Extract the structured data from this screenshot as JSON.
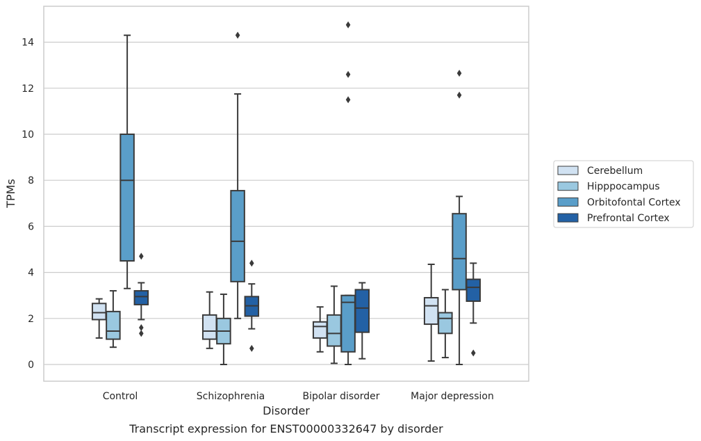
{
  "chart_data": {
    "type": "box",
    "xlabel": "Disorder",
    "ylabel": "TPMs",
    "caption": "Transcript expression for ENST00000332647 by disorder",
    "ylim": [
      -0.7,
      15.5
    ],
    "yticks": [
      0,
      2,
      4,
      6,
      8,
      10,
      12,
      14
    ],
    "grid": "horizontal",
    "legend_position": "right",
    "categories": [
      "Control",
      "Schizophrenia",
      "Bipolar disorder",
      "Major depression"
    ],
    "series": [
      {
        "name": "Cerebellum",
        "color": "#d1e2f2",
        "boxes": [
          {
            "whislo": 1.15,
            "q1": 1.95,
            "med": 2.25,
            "q3": 2.65,
            "whishi": 2.85,
            "fliers": []
          },
          {
            "whislo": 0.7,
            "q1": 1.1,
            "med": 1.45,
            "q3": 2.15,
            "whishi": 3.15,
            "fliers": []
          },
          {
            "whislo": 0.55,
            "q1": 1.15,
            "med": 1.65,
            "q3": 1.85,
            "whishi": 2.5,
            "fliers": []
          },
          {
            "whislo": 0.15,
            "q1": 1.75,
            "med": 2.55,
            "q3": 2.9,
            "whishi": 4.35,
            "fliers": []
          }
        ]
      },
      {
        "name": "Hipppocampus",
        "color": "#9ac8e0",
        "boxes": [
          {
            "whislo": 0.75,
            "q1": 1.1,
            "med": 1.45,
            "q3": 2.3,
            "whishi": 3.2,
            "fliers": []
          },
          {
            "whislo": 0.0,
            "q1": 0.9,
            "med": 1.45,
            "q3": 2.0,
            "whishi": 3.05,
            "fliers": []
          },
          {
            "whislo": 0.05,
            "q1": 0.8,
            "med": 1.35,
            "q3": 2.15,
            "whishi": 3.4,
            "fliers": []
          },
          {
            "whislo": 0.3,
            "q1": 1.35,
            "med": 2.0,
            "q3": 2.25,
            "whishi": 3.25,
            "fliers": []
          }
        ]
      },
      {
        "name": "Orbitofontal Cortex",
        "color": "#5a9ec9",
        "boxes": [
          {
            "whislo": 3.3,
            "q1": 4.5,
            "med": 8.0,
            "q3": 10.0,
            "whishi": 14.3,
            "fliers": []
          },
          {
            "whislo": 2.0,
            "q1": 3.6,
            "med": 5.35,
            "q3": 7.55,
            "whishi": 11.75,
            "fliers": [
              14.3
            ]
          },
          {
            "whislo": 0.0,
            "q1": 0.55,
            "med": 2.7,
            "q3": 3.0,
            "whishi": 3.0,
            "fliers": [
              11.5,
              12.6,
              14.75
            ]
          },
          {
            "whislo": 0.0,
            "q1": 3.25,
            "med": 4.6,
            "q3": 6.55,
            "whishi": 7.3,
            "fliers": [
              11.7,
              12.65
            ]
          }
        ]
      },
      {
        "name": "Prefrontal Cortex",
        "color": "#2361a5",
        "boxes": [
          {
            "whislo": 1.95,
            "q1": 2.6,
            "med": 2.95,
            "q3": 3.2,
            "whishi": 3.55,
            "fliers": [
              1.35,
              1.6,
              4.7
            ]
          },
          {
            "whislo": 1.55,
            "q1": 2.1,
            "med": 2.55,
            "q3": 2.95,
            "whishi": 3.5,
            "fliers": [
              0.7,
              4.4
            ]
          },
          {
            "whislo": 0.25,
            "q1": 1.4,
            "med": 2.45,
            "q3": 3.25,
            "whishi": 3.55,
            "fliers": []
          },
          {
            "whislo": 1.8,
            "q1": 2.75,
            "med": 3.35,
            "q3": 3.7,
            "whishi": 4.4,
            "fliers": [
              0.5
            ]
          }
        ]
      }
    ]
  }
}
